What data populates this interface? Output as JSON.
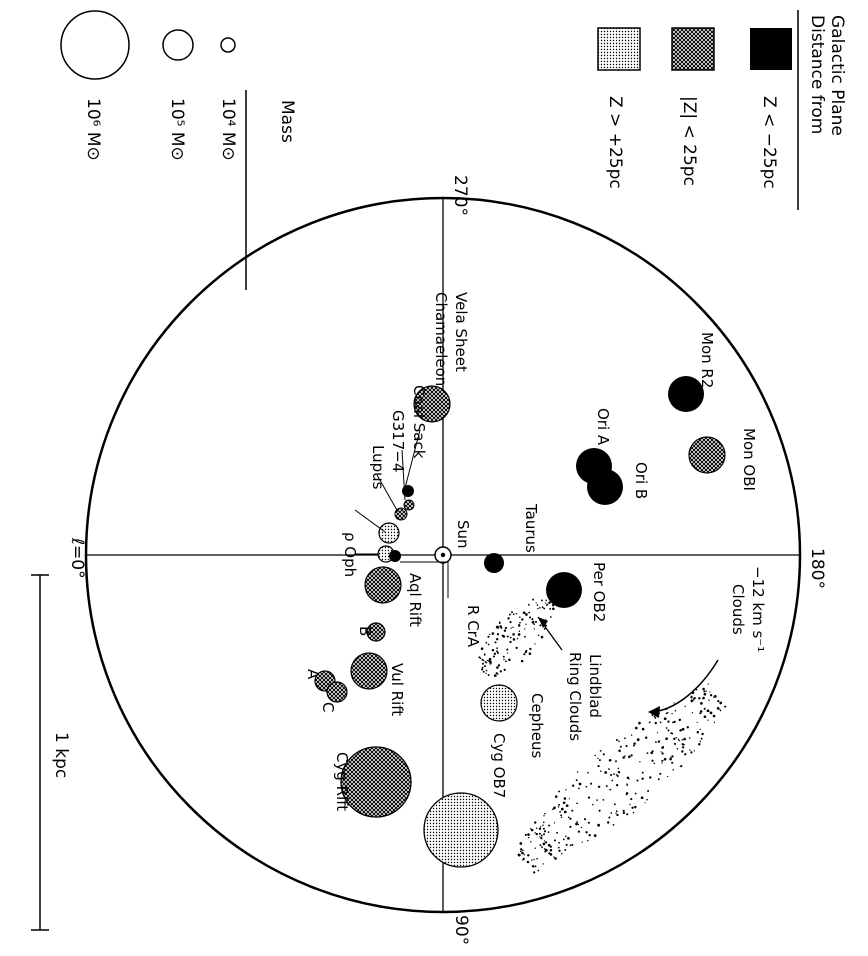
{
  "legend": {
    "distance_title_1": "Distance from",
    "distance_title_2": "Galactic Plane",
    "z_below": "Z < −25pc",
    "z_mid": "|Z| < 25pc",
    "z_above": "Z > +25pc",
    "mass_title": "Mass",
    "mass_1e4": "10⁴ M⊙",
    "mass_1e5": "10⁵ M⊙",
    "mass_1e6": "10⁶ M⊙"
  },
  "axes": {
    "l0": "ℓ=0°",
    "l90": "90°",
    "l180": "180°",
    "l270": "270°",
    "sun": "Sun"
  },
  "scale_bar": "1 kpc",
  "labels": {
    "mon_r2": "Mon R2",
    "mon_ob1": "Mon OBI",
    "ori_a": "Ori A",
    "ori_b": "Ori B",
    "taurus": "Taurus",
    "per_ob2": "Per OB2",
    "clouds_12": "−12 km s⁻¹ Clouds",
    "lindblad": "Lindblad Ring Clouds",
    "cepheus": "Cepheus",
    "cyg_ob7": "Cyg OB7",
    "cyg_rift": "Cyg Rift",
    "vul_rift": "Vul Rift",
    "aql_rift": "Aql Rift",
    "b": "B",
    "a": "A",
    "c": "C",
    "r_cra": "R CrA",
    "rho_oph": "ρ Oph",
    "lupus": "Lupus",
    "g317": "G317−4",
    "coal_sack": "Coal Sack",
    "chamaeleon": "Chamaeleon",
    "vela_sheet": "Vela Sheet"
  },
  "colors": {
    "ink": "#000000",
    "paper": "#ffffff"
  }
}
